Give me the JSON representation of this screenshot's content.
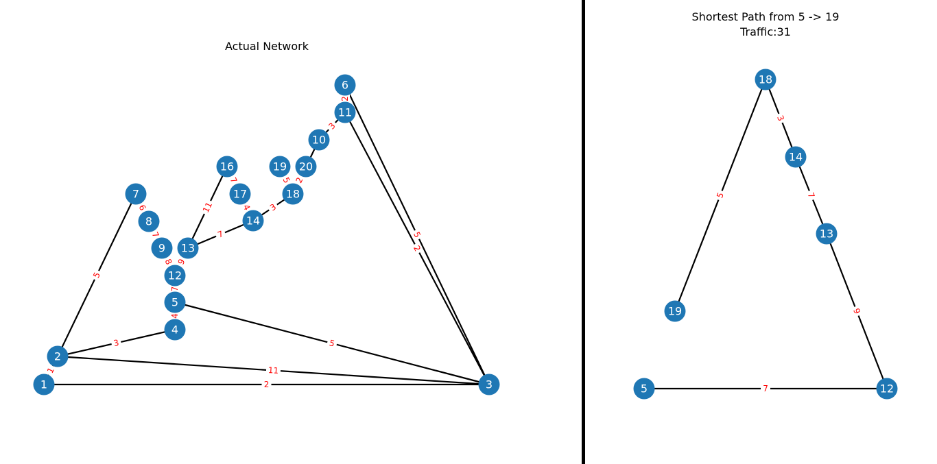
{
  "left_panel": {
    "title": "Actual Network",
    "nodes": [
      "1",
      "2",
      "3",
      "4",
      "5",
      "6",
      "7",
      "8",
      "9",
      "10",
      "11",
      "12",
      "13",
      "14",
      "16",
      "17",
      "18",
      "19",
      "20"
    ],
    "edges": [
      {
        "u": "1",
        "v": "3",
        "label": "2"
      },
      {
        "u": "1",
        "v": "2",
        "label": "1"
      },
      {
        "u": "2",
        "v": "3",
        "label": "11"
      },
      {
        "u": "2",
        "v": "4",
        "label": "3"
      },
      {
        "u": "2",
        "v": "7",
        "label": "5"
      },
      {
        "u": "5",
        "v": "3",
        "label": "5"
      },
      {
        "u": "4",
        "v": "5",
        "label": "4"
      },
      {
        "u": "5",
        "v": "12",
        "label": "7"
      },
      {
        "u": "12",
        "v": "9",
        "label": "8"
      },
      {
        "u": "12",
        "v": "13",
        "label": "9"
      },
      {
        "u": "9",
        "v": "8",
        "label": "7"
      },
      {
        "u": "8",
        "v": "7",
        "label": "6"
      },
      {
        "u": "13",
        "v": "16",
        "label": "11"
      },
      {
        "u": "13",
        "v": "14",
        "label": "7"
      },
      {
        "u": "14",
        "v": "17",
        "label": "4"
      },
      {
        "u": "14",
        "v": "18",
        "label": "3"
      },
      {
        "u": "18",
        "v": "19",
        "label": "5"
      },
      {
        "u": "18",
        "v": "20",
        "label": "2"
      },
      {
        "u": "18",
        "v": "10",
        "label": "1"
      },
      {
        "u": "16",
        "v": "17",
        "label": "7"
      },
      {
        "u": "10",
        "v": "11",
        "label": "3"
      },
      {
        "u": "11",
        "v": "6",
        "label": "2"
      },
      {
        "u": "6",
        "v": "3",
        "label": "5"
      },
      {
        "u": "11",
        "v": "3",
        "label": "2"
      }
    ]
  },
  "right_panel": {
    "title_line1": "Shortest Path from 5 -> 19",
    "title_line2": "Traffic:31",
    "nodes": [
      "18",
      "14",
      "13",
      "19",
      "5",
      "12"
    ],
    "edges": [
      {
        "u": "18",
        "v": "14",
        "label": "3"
      },
      {
        "u": "14",
        "v": "13",
        "label": "7"
      },
      {
        "u": "13",
        "v": "12",
        "label": "9"
      },
      {
        "u": "5",
        "v": "12",
        "label": "7"
      },
      {
        "u": "18",
        "v": "19",
        "label": "5"
      }
    ]
  },
  "colors": {
    "node": "#1f77b4",
    "node_text": "#ffffff",
    "edge": "#000000",
    "edge_label": "#ff0000"
  }
}
